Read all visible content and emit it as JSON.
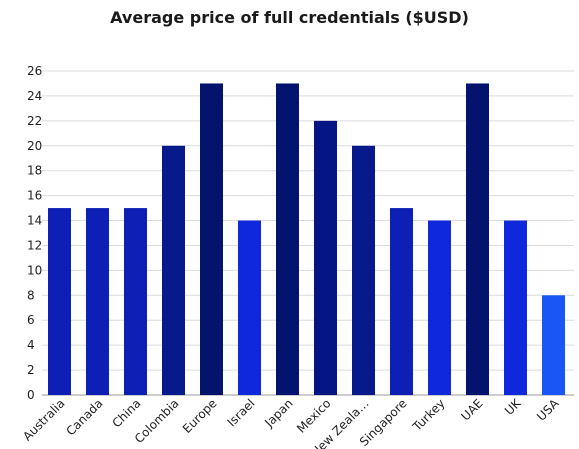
{
  "chart_data": {
    "type": "bar",
    "title": "Average price of full credentials ($USD)",
    "xlabel": "",
    "ylabel": "",
    "ylim": [
      0,
      26
    ],
    "yticks": [
      0,
      2,
      4,
      6,
      8,
      10,
      12,
      14,
      16,
      18,
      20,
      22,
      24,
      26
    ],
    "grid": true,
    "legend": "none",
    "categories": [
      "Australia",
      "Canada",
      "China",
      "Colombia",
      "Europe",
      "Israel",
      "Japan",
      "Mexico",
      "New Zealand",
      "Singapore",
      "Turkey",
      "UAE",
      "UK",
      "USA"
    ],
    "category_labels": [
      "Australia",
      "Canada",
      "China",
      "Colombia",
      "Europe",
      "Israel",
      "Japan",
      "Mexico",
      "New Zeala…",
      "Singapore",
      "Turkey",
      "UAE",
      "UK",
      "USA"
    ],
    "values": [
      15,
      15,
      15,
      20,
      25,
      14,
      25,
      22,
      20,
      15,
      14,
      25,
      14,
      8
    ],
    "colors": [
      "#0d1fb4",
      "#0d1fb4",
      "#0d1fb4",
      "#071a8c",
      "#03136e",
      "#0f28dc",
      "#03136e",
      "#061584",
      "#071a8c",
      "#0d1fb4",
      "#0f28dc",
      "#03136e",
      "#0f28dc",
      "#1a55f5"
    ]
  }
}
